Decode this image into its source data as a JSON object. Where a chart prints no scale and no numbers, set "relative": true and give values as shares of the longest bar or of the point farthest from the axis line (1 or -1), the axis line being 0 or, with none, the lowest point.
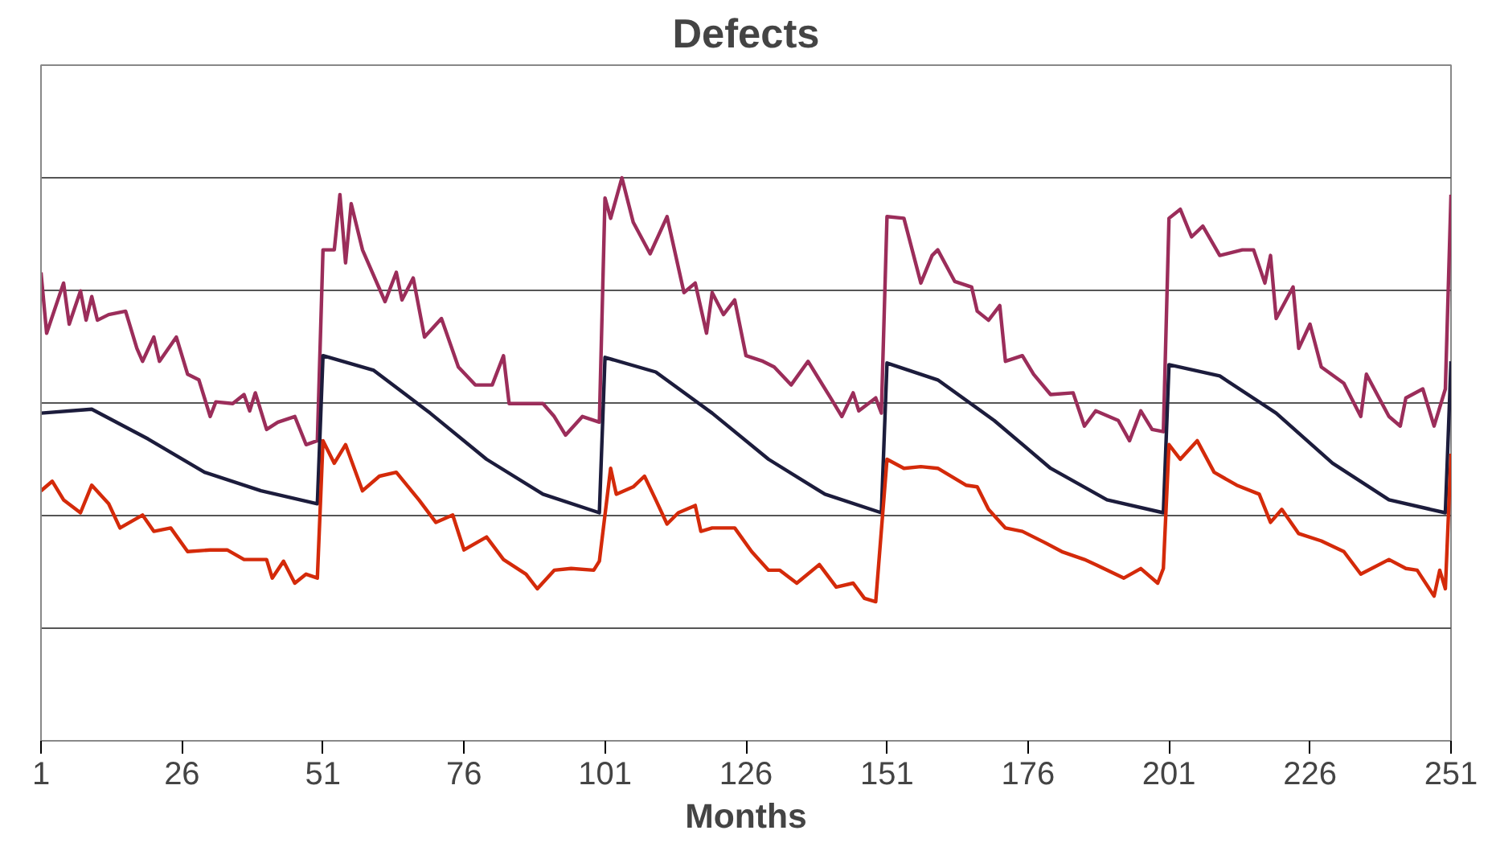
{
  "chart_data": {
    "type": "line",
    "title": "Defects",
    "xlabel": "Months",
    "relative": true,
    "grid": "y",
    "xlim": [
      1,
      251
    ],
    "xticks": [
      1,
      26,
      51,
      76,
      101,
      126,
      151,
      176,
      201,
      226,
      251
    ],
    "series": [
      {
        "color": "#9b2d5a",
        "x": [
          1,
          2,
          5,
          6,
          8,
          9,
          10,
          11,
          13,
          16,
          18,
          19,
          21,
          22,
          25,
          27,
          29,
          31,
          32,
          35,
          37,
          38,
          39,
          41,
          43,
          46,
          48,
          50,
          51,
          53,
          54,
          55,
          56,
          58,
          62,
          64,
          65,
          67,
          69,
          72,
          75,
          78,
          81,
          83,
          84,
          87,
          90,
          92,
          94,
          97,
          100,
          101,
          102,
          104,
          106,
          109,
          112,
          115,
          117,
          119,
          120,
          122,
          124,
          126,
          129,
          131,
          134,
          137,
          141,
          143,
          145,
          146,
          149,
          150,
          151,
          154,
          157,
          159,
          160,
          163,
          166,
          167,
          169,
          171,
          172,
          175,
          177,
          180,
          184,
          186,
          188,
          192,
          194,
          196,
          198,
          200,
          201,
          203,
          205,
          207,
          210,
          214,
          216,
          218,
          219,
          220,
          223,
          224,
          226,
          228,
          232,
          235,
          236,
          240,
          242,
          243,
          246,
          248,
          250,
          251
        ],
        "values": [
          0.832,
          0.724,
          0.813,
          0.74,
          0.799,
          0.747,
          0.789,
          0.747,
          0.757,
          0.763,
          0.697,
          0.674,
          0.717,
          0.674,
          0.717,
          0.651,
          0.641,
          0.576,
          0.602,
          0.599,
          0.615,
          0.586,
          0.618,
          0.553,
          0.566,
          0.576,
          0.526,
          0.533,
          0.872,
          0.872,
          0.97,
          0.849,
          0.954,
          0.872,
          0.78,
          0.832,
          0.783,
          0.822,
          0.717,
          0.75,
          0.664,
          0.632,
          0.632,
          0.684,
          0.599,
          0.599,
          0.599,
          0.576,
          0.543,
          0.576,
          0.566,
          0.964,
          0.928,
          1.0,
          0.921,
          0.865,
          0.931,
          0.796,
          0.813,
          0.724,
          0.796,
          0.757,
          0.783,
          0.684,
          0.674,
          0.664,
          0.632,
          0.674,
          0.609,
          0.576,
          0.618,
          0.586,
          0.609,
          0.582,
          0.931,
          0.928,
          0.813,
          0.862,
          0.872,
          0.816,
          0.806,
          0.763,
          0.747,
          0.773,
          0.674,
          0.684,
          0.651,
          0.615,
          0.618,
          0.559,
          0.586,
          0.569,
          0.533,
          0.586,
          0.553,
          0.549,
          0.928,
          0.944,
          0.895,
          0.914,
          0.862,
          0.872,
          0.872,
          0.813,
          0.862,
          0.75,
          0.806,
          0.697,
          0.74,
          0.664,
          0.635,
          0.576,
          0.651,
          0.576,
          0.559,
          0.609,
          0.625,
          0.559,
          0.625,
          0.97
        ]
      },
      {
        "color": "#1c1c3c",
        "x": [
          1,
          10,
          20,
          30,
          40,
          50,
          51,
          60,
          70,
          80,
          90,
          100,
          101,
          110,
          120,
          130,
          140,
          150,
          151,
          160,
          170,
          180,
          190,
          200,
          201,
          210,
          220,
          230,
          240,
          250,
          251
        ],
        "values": [
          0.582,
          0.589,
          0.536,
          0.477,
          0.444,
          0.421,
          0.684,
          0.658,
          0.582,
          0.5,
          0.438,
          0.405,
          0.681,
          0.655,
          0.582,
          0.5,
          0.438,
          0.405,
          0.671,
          0.641,
          0.569,
          0.484,
          0.428,
          0.405,
          0.668,
          0.648,
          0.582,
          0.493,
          0.428,
          0.405,
          0.674
        ]
      },
      {
        "color": "#d42a0a",
        "x": [
          1,
          3,
          5,
          8,
          10,
          13,
          15,
          19,
          21,
          24,
          27,
          31,
          34,
          37,
          41,
          42,
          44,
          46,
          48,
          50,
          51,
          53,
          55,
          58,
          61,
          64,
          68,
          71,
          74,
          76,
          80,
          83,
          87,
          89,
          92,
          95,
          99,
          100,
          102,
          103,
          106,
          108,
          110,
          112,
          114,
          117,
          118,
          120,
          124,
          127,
          130,
          132,
          135,
          139,
          142,
          145,
          147,
          149,
          151,
          154,
          157,
          160,
          165,
          167,
          169,
          172,
          175,
          179,
          182,
          186,
          188,
          193,
          196,
          199,
          200,
          201,
          203,
          206,
          209,
          213,
          217,
          219,
          221,
          224,
          228,
          232,
          235,
          240,
          243,
          245,
          248,
          249,
          250,
          251
        ],
        "values": [
          0.444,
          0.461,
          0.428,
          0.405,
          0.454,
          0.421,
          0.378,
          0.401,
          0.372,
          0.378,
          0.336,
          0.339,
          0.339,
          0.322,
          0.322,
          0.289,
          0.319,
          0.28,
          0.296,
          0.289,
          0.533,
          0.493,
          0.526,
          0.444,
          0.47,
          0.477,
          0.428,
          0.388,
          0.401,
          0.339,
          0.362,
          0.322,
          0.296,
          0.27,
          0.303,
          0.306,
          0.303,
          0.319,
          0.484,
          0.438,
          0.451,
          0.47,
          0.428,
          0.385,
          0.405,
          0.418,
          0.372,
          0.378,
          0.378,
          0.336,
          0.303,
          0.303,
          0.28,
          0.313,
          0.273,
          0.28,
          0.253,
          0.247,
          0.5,
          0.484,
          0.487,
          0.484,
          0.454,
          0.451,
          0.411,
          0.378,
          0.372,
          0.352,
          0.336,
          0.322,
          0.313,
          0.289,
          0.306,
          0.28,
          0.306,
          0.526,
          0.5,
          0.533,
          0.477,
          0.454,
          0.438,
          0.388,
          0.411,
          0.368,
          0.355,
          0.336,
          0.296,
          0.322,
          0.306,
          0.303,
          0.257,
          0.303,
          0.27,
          0.51
        ]
      }
    ]
  }
}
